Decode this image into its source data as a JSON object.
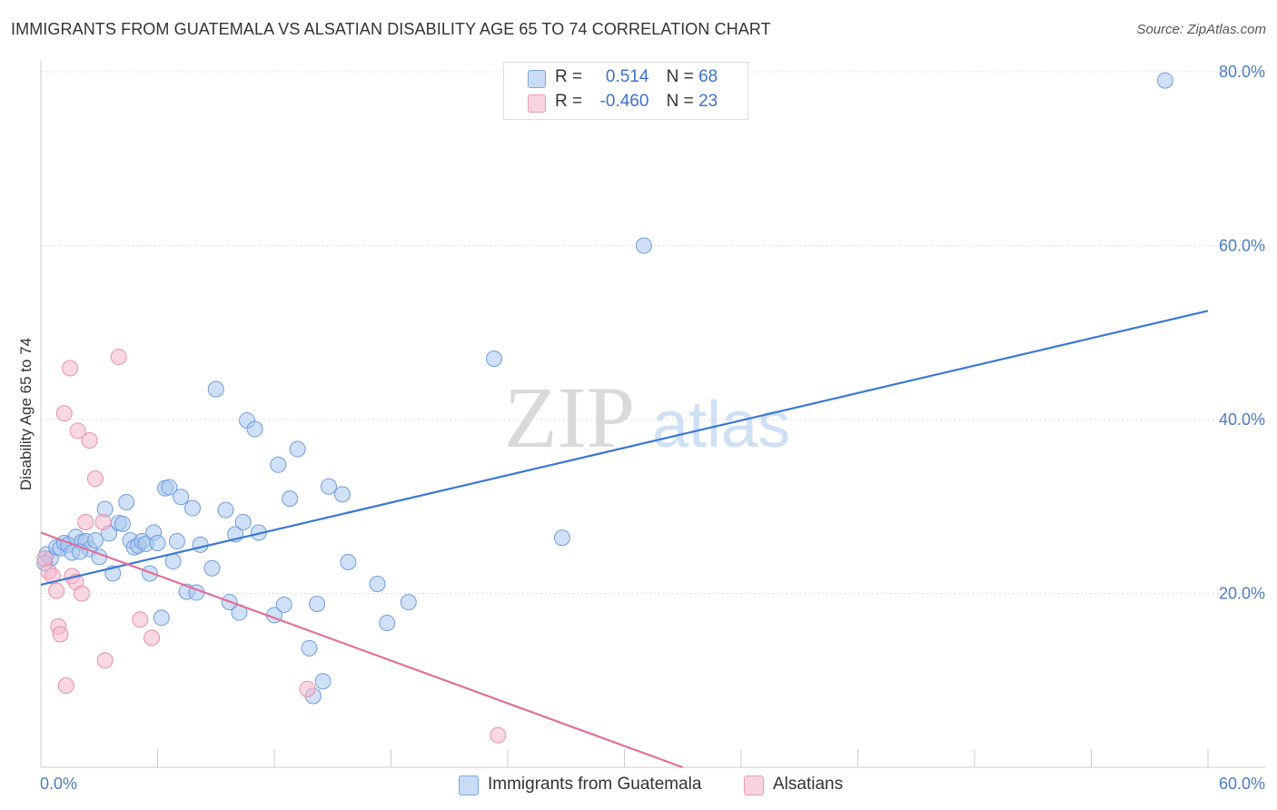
{
  "title": "IMMIGRANTS FROM GUATEMALA VS ALSATIAN DISABILITY AGE 65 TO 74 CORRELATION CHART",
  "source": "Source: ZipAtlas.com",
  "watermark": {
    "zip": "ZIP",
    "atlas": "atlas"
  },
  "legend_top": {
    "rows": [
      {
        "r_label": "R =",
        "r_value": "0.514",
        "n_label": "N =",
        "n_value": "68",
        "color": "#a9c6ef"
      },
      {
        "r_label": "R =",
        "r_value": "-0.460",
        "n_label": "N =",
        "n_value": "23",
        "color": "#f4b8cb"
      }
    ]
  },
  "legend_bottom": [
    {
      "label": "Immigrants from Guatemala",
      "color": "#a9c6ef"
    },
    {
      "label": "Alsatians",
      "color": "#f4b8cb"
    }
  ],
  "chart_data": {
    "type": "scatter",
    "title": "IMMIGRANTS FROM GUATEMALA VS ALSATIAN DISABILITY AGE 65 TO 74 CORRELATION CHART",
    "xlabel": "",
    "ylabel": "Disability Age 65 to 74",
    "xlim": [
      0,
      60
    ],
    "ylim": [
      0,
      80
    ],
    "x_tick_labels": [
      "0.0%",
      "60.0%"
    ],
    "y_ticks": [
      20,
      40,
      60,
      80
    ],
    "y_tick_labels": [
      "20.0%",
      "40.0%",
      "60.0%",
      "80.0%"
    ],
    "grid": true,
    "series": [
      {
        "name": "Immigrants from Guatemala",
        "color": "#a9c6ef",
        "stroke": "#6f9de0",
        "points": [
          [
            0.3,
            24.5
          ],
          [
            0.5,
            24.0
          ],
          [
            0.8,
            25.3
          ],
          [
            1.0,
            25.2
          ],
          [
            1.2,
            25.8
          ],
          [
            1.4,
            25.6
          ],
          [
            1.6,
            24.7
          ],
          [
            1.8,
            26.5
          ],
          [
            2.1,
            25.9
          ],
          [
            2.3,
            26.0
          ],
          [
            2.5,
            25.1
          ],
          [
            2.8,
            26.1
          ],
          [
            3.0,
            24.2
          ],
          [
            3.3,
            29.7
          ],
          [
            3.5,
            26.9
          ],
          [
            3.7,
            22.3
          ],
          [
            4.0,
            28.1
          ],
          [
            4.2,
            28.0
          ],
          [
            4.4,
            30.5
          ],
          [
            4.6,
            26.1
          ],
          [
            4.8,
            25.3
          ],
          [
            5.0,
            25.5
          ],
          [
            5.2,
            26.0
          ],
          [
            5.4,
            25.7
          ],
          [
            5.6,
            22.3
          ],
          [
            5.8,
            27.0
          ],
          [
            6.0,
            25.8
          ],
          [
            6.2,
            17.2
          ],
          [
            6.4,
            32.1
          ],
          [
            6.6,
            32.2
          ],
          [
            6.8,
            23.7
          ],
          [
            7.0,
            26.0
          ],
          [
            7.2,
            31.1
          ],
          [
            7.5,
            20.2
          ],
          [
            7.8,
            29.8
          ],
          [
            8.0,
            20.1
          ],
          [
            8.2,
            25.6
          ],
          [
            8.8,
            22.9
          ],
          [
            9.0,
            43.5
          ],
          [
            9.5,
            29.6
          ],
          [
            9.7,
            19.0
          ],
          [
            10.0,
            26.8
          ],
          [
            10.2,
            17.8
          ],
          [
            10.4,
            28.2
          ],
          [
            10.6,
            39.9
          ],
          [
            11.0,
            38.9
          ],
          [
            11.2,
            27.0
          ],
          [
            12.0,
            17.5
          ],
          [
            12.2,
            34.8
          ],
          [
            12.5,
            18.7
          ],
          [
            12.8,
            30.9
          ],
          [
            13.2,
            36.6
          ],
          [
            13.8,
            13.7
          ],
          [
            14.2,
            18.8
          ],
          [
            14.5,
            9.9
          ],
          [
            14.8,
            32.3
          ],
          [
            15.5,
            31.4
          ],
          [
            15.8,
            23.6
          ],
          [
            14.0,
            8.2
          ],
          [
            17.3,
            21.1
          ],
          [
            17.8,
            16.6
          ],
          [
            18.9,
            19.0
          ],
          [
            23.3,
            47.0
          ],
          [
            26.8,
            26.4
          ],
          [
            31.0,
            60.0
          ],
          [
            57.8,
            79.0
          ],
          [
            0.2,
            23.5
          ],
          [
            2.0,
            24.8
          ]
        ],
        "trend": [
          [
            0.0,
            21.0
          ],
          [
            60.0,
            52.5
          ]
        ]
      },
      {
        "name": "Alsatians",
        "color": "#f4b8cb",
        "stroke": "#e890ad",
        "points": [
          [
            0.2,
            24.0
          ],
          [
            0.4,
            22.5
          ],
          [
            0.6,
            22.0
          ],
          [
            0.8,
            20.3
          ],
          [
            0.9,
            16.2
          ],
          [
            1.0,
            15.3
          ],
          [
            1.2,
            40.7
          ],
          [
            1.3,
            9.4
          ],
          [
            1.5,
            45.9
          ],
          [
            1.6,
            22.0
          ],
          [
            1.8,
            21.3
          ],
          [
            1.9,
            38.7
          ],
          [
            2.1,
            20.0
          ],
          [
            2.3,
            28.2
          ],
          [
            2.5,
            37.6
          ],
          [
            2.8,
            33.2
          ],
          [
            3.2,
            28.2
          ],
          [
            3.3,
            12.3
          ],
          [
            5.1,
            17.0
          ],
          [
            5.7,
            14.9
          ],
          [
            4.0,
            47.2
          ],
          [
            13.7,
            9.0
          ],
          [
            23.5,
            3.7
          ]
        ],
        "trend": [
          [
            0.0,
            27.0
          ],
          [
            33.0,
            0.0
          ]
        ]
      }
    ]
  }
}
